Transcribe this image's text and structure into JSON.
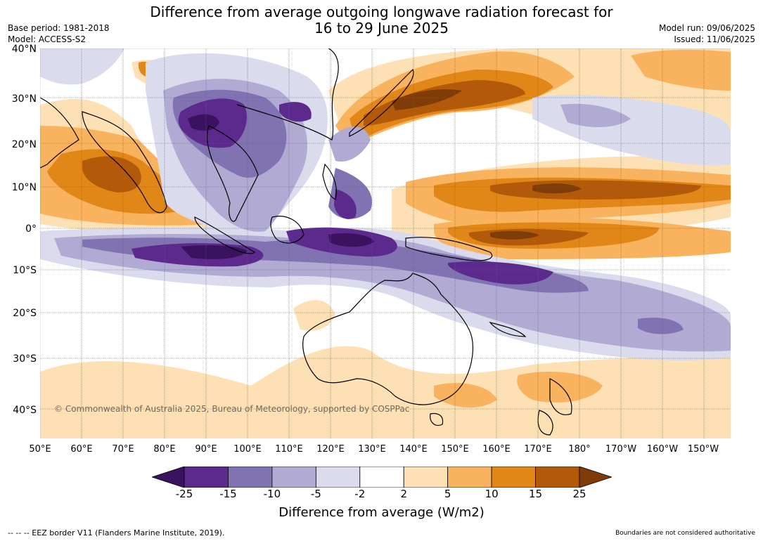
{
  "title_line1": "Difference from average outgoing longwave radiation forecast for",
  "title_line2": "16 to 29 June 2025",
  "base_period": "Base period: 1981-2018",
  "model": "Model: ACCESS-S2",
  "model_run": "Model run: 09/06/2025",
  "issued": "Issued: 11/06/2025",
  "copyright": "© Commonwealth of Australia 2025, Bureau of Meteorology, supported by COSPPac",
  "lat_labels": [
    "40°N",
    "30°N",
    "20°N",
    "10°N",
    "0°",
    "10°S",
    "20°S",
    "30°S",
    "40°S"
  ],
  "lon_labels": [
    "50°E",
    "60°E",
    "70°E",
    "80°E",
    "90°E",
    "100°E",
    "110°E",
    "120°E",
    "130°E",
    "140°E",
    "150°E",
    "160°E",
    "170°E",
    "180°",
    "170°W",
    "160°W",
    "150°W"
  ],
  "colorbar": {
    "ticks": [
      "-25",
      "-15",
      "-10",
      "-5",
      "-2",
      "2",
      "5",
      "10",
      "15",
      "25"
    ],
    "colors": [
      "#3b1260",
      "#5b2a8c",
      "#8173b1",
      "#b1aad3",
      "#dadbec",
      "#ffffff",
      "#fde0b3",
      "#f9b35f",
      "#e08718",
      "#b35a0a",
      "#7f3b08"
    ],
    "label": "Difference from average (W/m2)"
  },
  "footer_left": "--  --  -- EEZ border V11 (Flanders Marine Institute, 2019).",
  "footer_right": "Boundaries are not considered authoritative"
}
